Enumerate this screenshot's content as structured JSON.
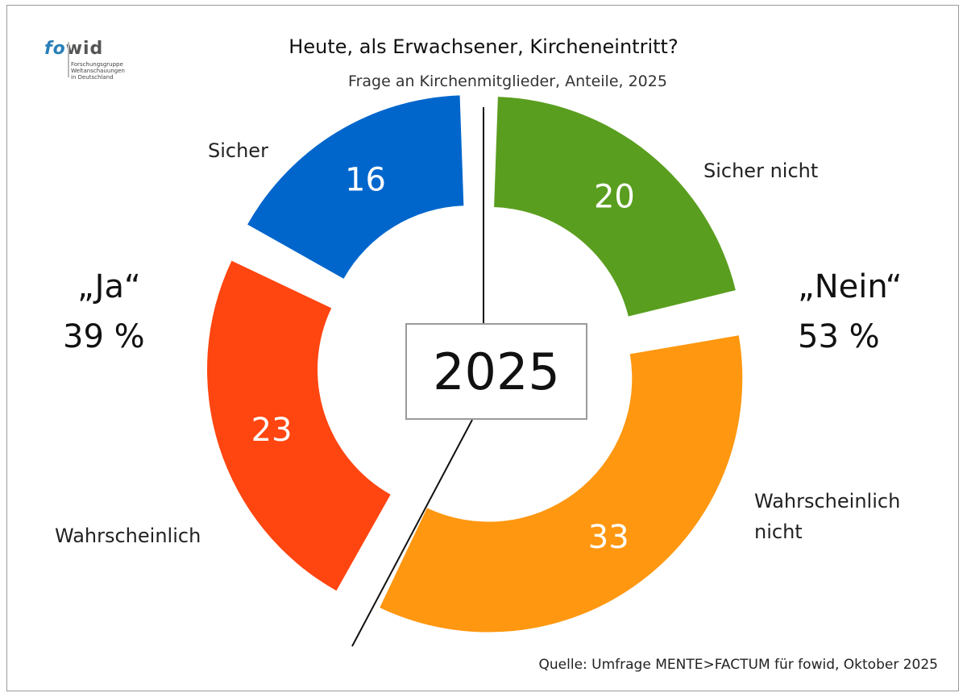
{
  "logo": {
    "word_fo": "fo",
    "word_wid": "wid",
    "subtitle_lines": [
      "Forschungsgruppe",
      "Weltanschauungen",
      "in Deutschland"
    ]
  },
  "title": "Heute, als Erwachsener, Kircheneintritt?",
  "subtitle": "Frage an Kirchenmitglieder, Anteile, 2025",
  "center_label": "2025",
  "groups": {
    "ja": {
      "label": "„Ja“",
      "value": "39 %"
    },
    "nein": {
      "label": "„Nein“",
      "value": "53 %"
    }
  },
  "segment_labels": {
    "sicher": "Sicher",
    "sicher_nicht": "Sicher nicht",
    "wahrscheinlich": "Wahrscheinlich",
    "wahrscheinlich_nicht_1": "Wahrscheinlich",
    "wahrscheinlich_nicht_2": "nicht"
  },
  "source": "Quelle: Umfrage MENTE>FACTUM für fowid, Oktober 2025",
  "colors": {
    "sicher": "#0066cc",
    "sicher_nicht": "#5a9e1f",
    "wahrscheinlich_nicht": "#ff9710",
    "wahrscheinlich": "#ff4510",
    "frame": "#9a9a9a"
  },
  "chart_data": {
    "type": "pie",
    "title": "Heute, als Erwachsener, Kircheneintritt?",
    "subtitle": "Frage an Kirchenmitglieder, Anteile, 2025",
    "categories": [
      "Sicher",
      "Wahrscheinlich",
      "Sicher nicht",
      "Wahrscheinlich nicht"
    ],
    "values": [
      16,
      23,
      20,
      33
    ],
    "groups": [
      {
        "name": "„Ja“",
        "value": 39,
        "members": [
          "Sicher",
          "Wahrscheinlich"
        ]
      },
      {
        "name": "„Nein“",
        "value": 53,
        "members": [
          "Sicher nicht",
          "Wahrscheinlich nicht"
        ]
      }
    ],
    "donut": true,
    "value_labels": [
      "16",
      "23",
      "20",
      "33"
    ]
  }
}
